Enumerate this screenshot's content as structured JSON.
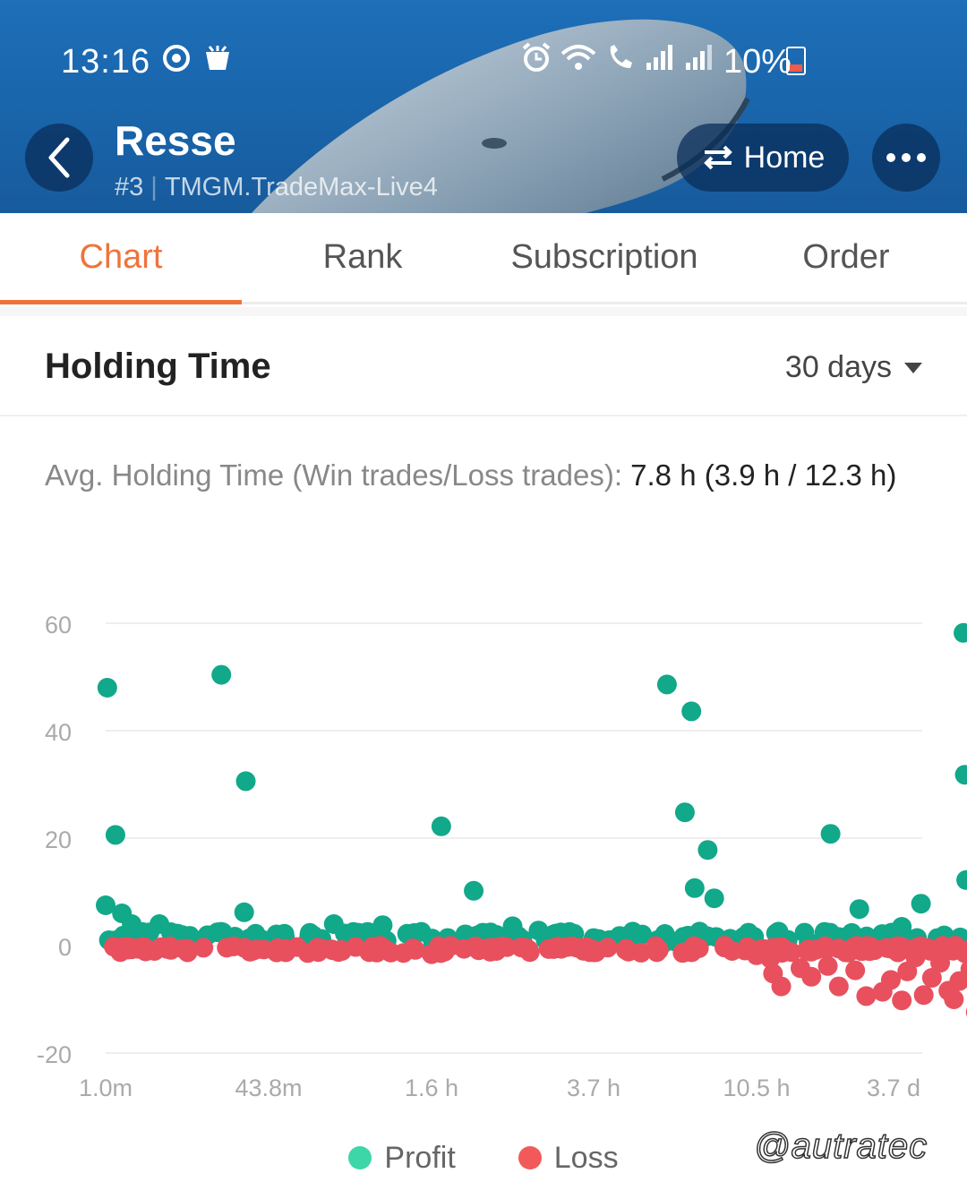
{
  "status_bar": {
    "time": "13:16",
    "battery": "10%"
  },
  "header": {
    "title": "Resse",
    "rank_tag": "#3",
    "server": "TMGM.TradeMax-Live4",
    "home_label": "Home"
  },
  "tabs": [
    {
      "label": "Chart",
      "active": true
    },
    {
      "label": "Rank",
      "active": false
    },
    {
      "label": "Subscription",
      "active": false
    },
    {
      "label": "Order",
      "active": false
    }
  ],
  "section": {
    "title": "Holding Time",
    "range": "30 days"
  },
  "summary": {
    "label": "Avg. Holding Time (Win trades/Loss trades):",
    "value": "7.8 h (3.9 h / 12.3 h)"
  },
  "legend": {
    "profit_label": "Profit",
    "loss_label": "Loss"
  },
  "watermark": "@autratec",
  "colors": {
    "accent": "#f0733a",
    "profit": "#12a88a",
    "loss": "#e8505e",
    "legend_profit": "#3dd6a8",
    "legend_loss": "#f25a5a"
  },
  "chart_data": {
    "type": "scatter",
    "x_scale": "log",
    "x_ticks": [
      "1.0m",
      "43.8m",
      "1.6 h",
      "3.7 h",
      "10.5 h",
      "3.7 d"
    ],
    "y_ticks": [
      "60",
      "40",
      "20",
      "0",
      "-20"
    ],
    "ylim": [
      -20,
      60
    ],
    "grid": true,
    "legend": "bottom",
    "series": [
      {
        "name": "Profit",
        "points": [
          [
            0.01,
            48
          ],
          [
            0.06,
            20.6
          ],
          [
            0.0,
            7.5
          ],
          [
            0.1,
            6
          ],
          [
            0.16,
            4
          ],
          [
            0.33,
            4
          ],
          [
            0.4,
            2.5
          ],
          [
            0.2,
            2
          ],
          [
            0.02,
            1
          ],
          [
            0.04,
            0.5
          ],
          [
            0.71,
            50.4
          ],
          [
            0.86,
            30.6
          ],
          [
            0.85,
            6.2
          ],
          [
            0.92,
            2.2
          ],
          [
            1.1,
            1.5
          ],
          [
            1.25,
            2
          ],
          [
            1.4,
            4
          ],
          [
            1.55,
            2.4
          ],
          [
            1.7,
            3.8
          ],
          [
            1.85,
            2.2
          ],
          [
            2.06,
            22.2
          ],
          [
            2.26,
            10.2
          ],
          [
            2.1,
            1.4
          ],
          [
            2.4,
            2
          ],
          [
            2.5,
            3.6
          ],
          [
            2.66,
            2.8
          ],
          [
            2.88,
            2.2
          ],
          [
            3.0,
            1.4
          ],
          [
            3.16,
            1.8
          ],
          [
            3.24,
            2.6
          ],
          [
            3.45,
            48.6
          ],
          [
            3.6,
            43.6
          ],
          [
            3.56,
            24.8
          ],
          [
            3.7,
            17.8
          ],
          [
            3.62,
            10.7
          ],
          [
            3.74,
            8.8
          ],
          [
            3.65,
            2.6
          ],
          [
            3.95,
            2.4
          ],
          [
            4.16,
            2.6
          ],
          [
            4.35,
            2.4
          ],
          [
            4.54,
            20.8
          ],
          [
            4.75,
            6.8
          ],
          [
            4.6,
            1.6
          ],
          [
            4.85,
            1.2
          ],
          [
            5.06,
            3.5
          ],
          [
            5.2,
            7.8
          ],
          [
            5.32,
            1.4
          ],
          [
            5.51,
            58.2
          ],
          [
            5.52,
            31.8
          ],
          [
            5.53,
            12.2
          ]
        ]
      },
      {
        "name": "Loss",
        "points": [
          [
            0.05,
            -0.2
          ],
          [
            0.09,
            -1.2
          ],
          [
            0.2,
            -0.6
          ],
          [
            0.3,
            -1.0
          ],
          [
            0.4,
            -0.8
          ],
          [
            0.5,
            -0.6
          ],
          [
            0.6,
            -0.4
          ],
          [
            0.85,
            -0.4
          ],
          [
            1.1,
            -0.6
          ],
          [
            1.3,
            -0.4
          ],
          [
            1.45,
            -1.0
          ],
          [
            1.7,
            -0.6
          ],
          [
            1.9,
            -0.8
          ],
          [
            2.0,
            -1.6
          ],
          [
            2.2,
            -0.6
          ],
          [
            2.4,
            -1.0
          ],
          [
            2.6,
            -0.8
          ],
          [
            2.8,
            -0.6
          ],
          [
            3.0,
            -0.8
          ],
          [
            3.2,
            -0.6
          ],
          [
            3.4,
            -0.8
          ],
          [
            3.6,
            -1.2
          ],
          [
            3.85,
            -1.0
          ],
          [
            4.0,
            -1.8
          ],
          [
            4.1,
            -2.4
          ],
          [
            4.12,
            -5.2
          ],
          [
            4.18,
            -7.6
          ],
          [
            4.32,
            -4.2
          ],
          [
            4.4,
            -5.8
          ],
          [
            4.52,
            -3.8
          ],
          [
            4.6,
            -7.6
          ],
          [
            4.72,
            -4.6
          ],
          [
            4.8,
            -9.4
          ],
          [
            4.92,
            -8.6
          ],
          [
            4.98,
            -6.4
          ],
          [
            5.06,
            -10.2
          ],
          [
            5.1,
            -4.8
          ],
          [
            5.16,
            -2.2
          ],
          [
            5.22,
            -9.2
          ],
          [
            5.28,
            -6.0
          ],
          [
            5.34,
            -3.2
          ],
          [
            5.4,
            -8.4
          ],
          [
            5.44,
            -10.0
          ],
          [
            5.48,
            -6.6
          ],
          [
            5.52,
            -1.4
          ],
          [
            5.56,
            -4.4
          ],
          [
            5.6,
            -12.4
          ],
          [
            5.64,
            -11.2
          ],
          [
            5.68,
            -6.2
          ],
          [
            5.72,
            -1.2
          ]
        ]
      }
    ]
  }
}
